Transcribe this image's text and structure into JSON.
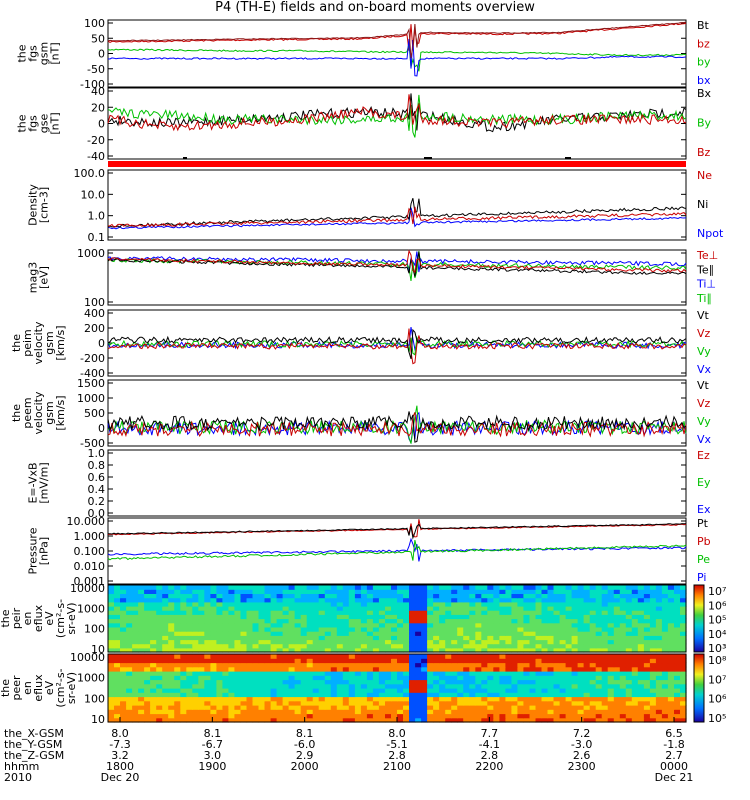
{
  "title": "P4 (TH-E) fields and on-board moments overview",
  "colors": {
    "black": "#000000",
    "red": "#c80000",
    "green": "#00c000",
    "blue": "#0000ff",
    "brown": "#8b1a1a"
  },
  "chart_data": [
    {
      "type": "line",
      "panel": "fgs_dsl",
      "ylabel": [
        "the",
        "fgs",
        "gsm",
        "[nT]"
      ],
      "yticks": [
        "100",
        "50",
        "0",
        "-50",
        "-100"
      ],
      "ylim": [
        -100,
        100
      ],
      "series": [
        {
          "name": "Bt",
          "values": [
            35,
            37,
            40,
            42,
            44,
            60,
            58,
            60,
            75,
            90
          ]
        },
        {
          "name": "bz",
          "values": [
            35,
            37,
            40,
            42,
            44,
            60,
            58,
            60,
            75,
            90
          ]
        },
        {
          "name": "by",
          "values": [
            12,
            10,
            8,
            8,
            5,
            4,
            3,
            0,
            -5,
            -4
          ]
        },
        {
          "name": "bx",
          "values": [
            -15,
            -15,
            -15,
            -15,
            -15,
            -15,
            -15,
            -15,
            -10,
            -10
          ]
        }
      ]
    },
    {
      "type": "line",
      "panel": "fgs_gse",
      "ylabel": [
        "the",
        "fgs",
        "gse",
        "[nT]"
      ],
      "yticks": [
        "40",
        "20",
        "0",
        "-20",
        "-40"
      ],
      "ylim": [
        -50,
        40
      ],
      "series": [
        {
          "name": "Bx",
          "values": [
            0,
            -5,
            0,
            5,
            10,
            5,
            -10,
            0,
            5,
            10
          ]
        },
        {
          "name": "By",
          "values": [
            10,
            5,
            0,
            0,
            0,
            5,
            0,
            0,
            5,
            5
          ]
        },
        {
          "name": "Bz",
          "values": [
            0,
            -10,
            -5,
            0,
            10,
            0,
            -5,
            0,
            0,
            0
          ]
        }
      ]
    },
    {
      "type": "line",
      "panel": "density",
      "ylabel": [
        "Density",
        "[cm-3]"
      ],
      "yticks": [
        "100.0",
        "10.0",
        "1.0",
        "0.1"
      ],
      "ylim": [
        0.1,
        100
      ],
      "yscale": "log",
      "series": [
        {
          "name": "Ne"
        },
        {
          "name": "Ni"
        },
        {
          "name": "Npot"
        }
      ]
    },
    {
      "type": "line",
      "panel": "temperature",
      "ylabel": [
        "mag3",
        "[eV]"
      ],
      "yticks": [
        "1000",
        "100"
      ],
      "ylim": [
        30,
        5000
      ],
      "yscale": "log",
      "series": [
        {
          "name": "Te⊥"
        },
        {
          "name": "Te∥"
        },
        {
          "name": "Ti⊥"
        },
        {
          "name": "Ti∥"
        }
      ]
    },
    {
      "type": "line",
      "panel": "peim_velocity",
      "ylabel": [
        "the",
        "peim",
        "velocity",
        "gsm",
        "[km/s]"
      ],
      "yticks": [
        "400",
        "200",
        "0",
        "-200",
        "-400"
      ],
      "ylim": [
        -400,
        400
      ],
      "series": [
        {
          "name": "Vt"
        },
        {
          "name": "Vz"
        },
        {
          "name": "Vy"
        },
        {
          "name": "Vx"
        }
      ]
    },
    {
      "type": "line",
      "panel": "peem_velocity",
      "ylabel": [
        "the",
        "peem",
        "velocity",
        "gsm",
        "[km/s]"
      ],
      "yticks": [
        "1500",
        "1000",
        "500",
        "0",
        "-500"
      ],
      "ylim": [
        -700,
        1500
      ],
      "series": [
        {
          "name": "Vt"
        },
        {
          "name": "Vz"
        },
        {
          "name": "Vy"
        },
        {
          "name": "Vx"
        }
      ]
    },
    {
      "type": "line",
      "panel": "efield",
      "ylabel": [
        "E=-VxB",
        "[mV/m]"
      ],
      "yticks": [
        "1.0",
        "0.8",
        "0.6",
        "0.4",
        "0.2",
        "0.0"
      ],
      "ylim": [
        0,
        1
      ],
      "series": [
        {
          "name": "Ez"
        },
        {
          "name": "Ey"
        },
        {
          "name": "Ex"
        }
      ]
    },
    {
      "type": "line",
      "panel": "pressure",
      "ylabel": [
        "Pressure",
        "[nPa]"
      ],
      "yticks": [
        "10.000",
        "1.000",
        "0.100",
        "0.010",
        "0.001"
      ],
      "ylim": [
        0.001,
        10
      ],
      "yscale": "log",
      "series": [
        {
          "name": "Pt"
        },
        {
          "name": "Pb"
        },
        {
          "name": "Pe"
        },
        {
          "name": "Pi"
        }
      ]
    },
    {
      "type": "heatmap",
      "panel": "peir_eflux",
      "ylabel": [
        "the",
        "peir",
        "en",
        "eflux",
        "eV",
        "(cm²-s-",
        "sr-eV)"
      ],
      "yticks": [
        "10000",
        "1000",
        "100",
        "10"
      ],
      "cbar_ticks": [
        "10⁷",
        "10⁶",
        "10⁵",
        "10⁴",
        "10³"
      ]
    },
    {
      "type": "heatmap",
      "panel": "peer_eflux",
      "ylabel": [
        "the",
        "peer",
        "en",
        "eflux",
        "eV",
        "(cm²-s-",
        "sr-eV)"
      ],
      "yticks": [
        "10000",
        "1000",
        "100",
        "10"
      ],
      "cbar_ticks": [
        "10⁸",
        "10⁷",
        "10⁶",
        "10⁵"
      ]
    }
  ],
  "xaxis": {
    "row_labels": [
      "the_X-GSM",
      "the_Y-GSM",
      "the_Z-GSM",
      "hhmm",
      "2010"
    ],
    "columns": [
      {
        "x": "8.0",
        "y": "-7.3",
        "z": "3.2",
        "hhmm": "1800",
        "date": "Dec 20"
      },
      {
        "x": "8.1",
        "y": "-6.7",
        "z": "3.0",
        "hhmm": "1900",
        "date": ""
      },
      {
        "x": "8.1",
        "y": "-6.0",
        "z": "2.9",
        "hhmm": "2000",
        "date": ""
      },
      {
        "x": "8.0",
        "y": "-5.1",
        "z": "2.8",
        "hhmm": "2100",
        "date": ""
      },
      {
        "x": "7.7",
        "y": "-4.1",
        "z": "2.8",
        "hhmm": "2200",
        "date": ""
      },
      {
        "x": "7.2",
        "y": "-3.0",
        "z": "2.6",
        "hhmm": "2300",
        "date": ""
      },
      {
        "x": "6.5",
        "y": "-1.8",
        "z": "2.7",
        "hhmm": "0000",
        "date": "Dec 21"
      }
    ]
  }
}
